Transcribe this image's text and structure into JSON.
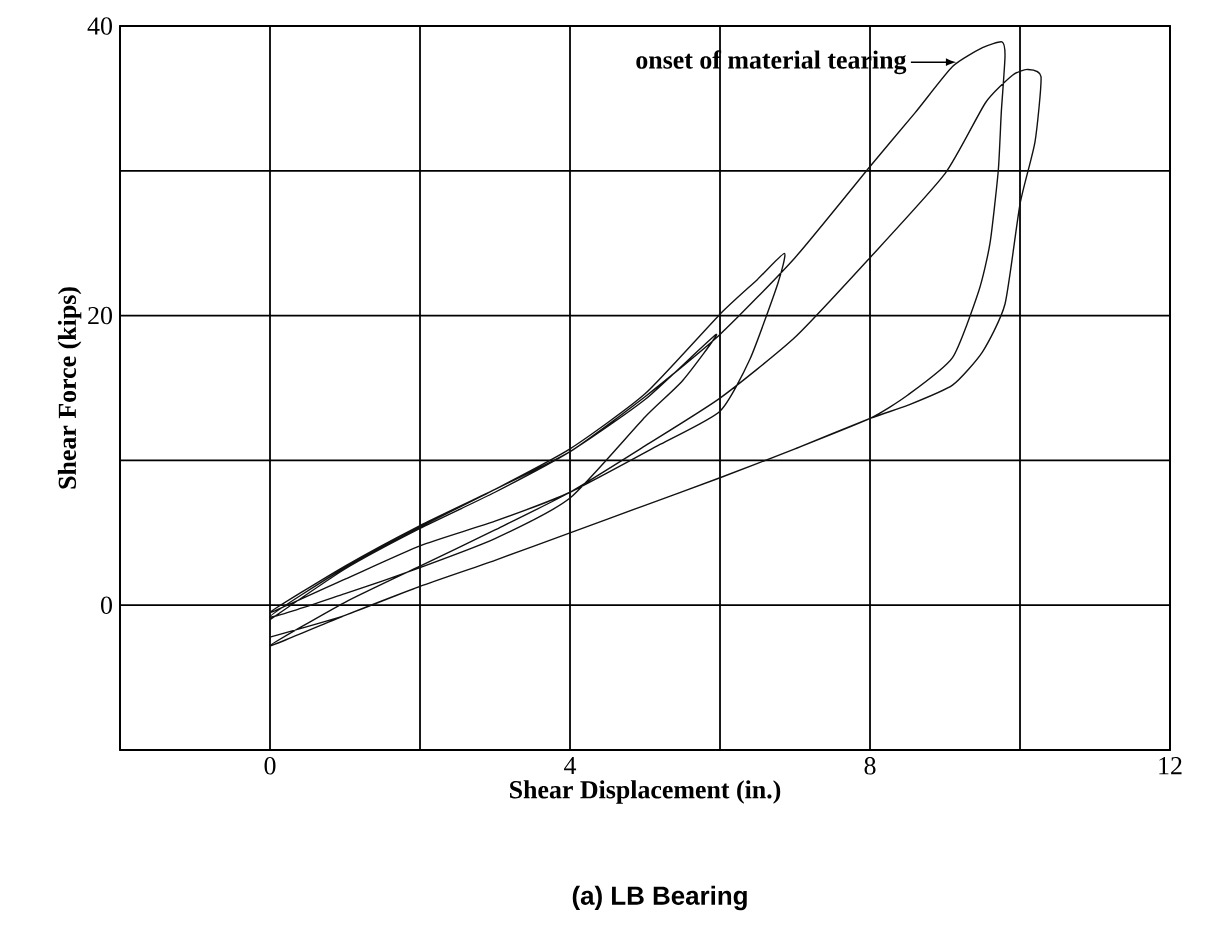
{
  "chart_data": {
    "type": "line",
    "title": "(a) LB Bearing",
    "xlabel": "Shear Displacement (in.)",
    "ylabel": "Shear Force (kips)",
    "xlim": [
      -2,
      12
    ],
    "ylim": [
      -10,
      40
    ],
    "xticks": [
      {
        "value": -2,
        "label": null
      },
      0,
      {
        "value": 2,
        "label": null
      },
      4,
      {
        "value": 6,
        "label": null
      },
      8,
      {
        "value": 10,
        "label": null
      },
      12
    ],
    "yticks": [
      {
        "value": -10,
        "label": null
      },
      0,
      {
        "value": 10,
        "label": null
      },
      20,
      {
        "value": 30,
        "label": null
      },
      40
    ],
    "grid": true,
    "marker": "none",
    "line_style": "solid",
    "series": [
      {
        "color": "#111111",
        "x": [
          0,
          1,
          2,
          3,
          4,
          5,
          5.95,
          5.5,
          5,
          4,
          3,
          2,
          1,
          0,
          1,
          2,
          3,
          4,
          5,
          6,
          6.5,
          6.86,
          6.77,
          6.4,
          6,
          5.2,
          4,
          3,
          2,
          1,
          0,
          1,
          2,
          3,
          4,
          5,
          6,
          7,
          8,
          8.6,
          9.1,
          9.5,
          9.76,
          9.8,
          9.75,
          9.71,
          9.6,
          9.45,
          9.1,
          8.5,
          8,
          7,
          6,
          5,
          4,
          3,
          2,
          1,
          0,
          1,
          2,
          3,
          4,
          5,
          6,
          7,
          8,
          9,
          9.54,
          9.9,
          10.1,
          10.28,
          10.2,
          10,
          9.8,
          9.5,
          9.1,
          8.5,
          8,
          7,
          6,
          5,
          4,
          3,
          2,
          1,
          0
        ],
        "values": [
          -1,
          2.5,
          5.3,
          7.8,
          10.6,
          14.2,
          18.7,
          15.5,
          13,
          7.4,
          4.6,
          2.6,
          0.8,
          -0.8,
          2.6,
          5.4,
          8,
          10.8,
          14.6,
          20.1,
          22.5,
          24.3,
          22.2,
          17,
          13.4,
          11.1,
          7.8,
          5.8,
          4.1,
          1.8,
          -0.5,
          2.7,
          5.5,
          8,
          10.6,
          14.4,
          18.7,
          24,
          30.3,
          34,
          37.2,
          38.5,
          38.9,
          37.9,
          34,
          30,
          25,
          21.7,
          17.1,
          14.5,
          12.9,
          10.8,
          8.8,
          6.9,
          5.0,
          3.1,
          1.3,
          -0.7,
          -2.8,
          0.2,
          2.7,
          5.2,
          7.8,
          11,
          14.3,
          18.5,
          24,
          29.8,
          34.7,
          36.6,
          37,
          36.5,
          32,
          27.7,
          20.8,
          17.5,
          15.2,
          13.8,
          12.9,
          10.8,
          8.8,
          6.9,
          5.0,
          3.1,
          1.3,
          -0.7,
          -2.2
        ]
      }
    ],
    "annotations": [
      {
        "text": "onset of material tearing",
        "x": 9.15,
        "y": 37.5
      }
    ]
  }
}
